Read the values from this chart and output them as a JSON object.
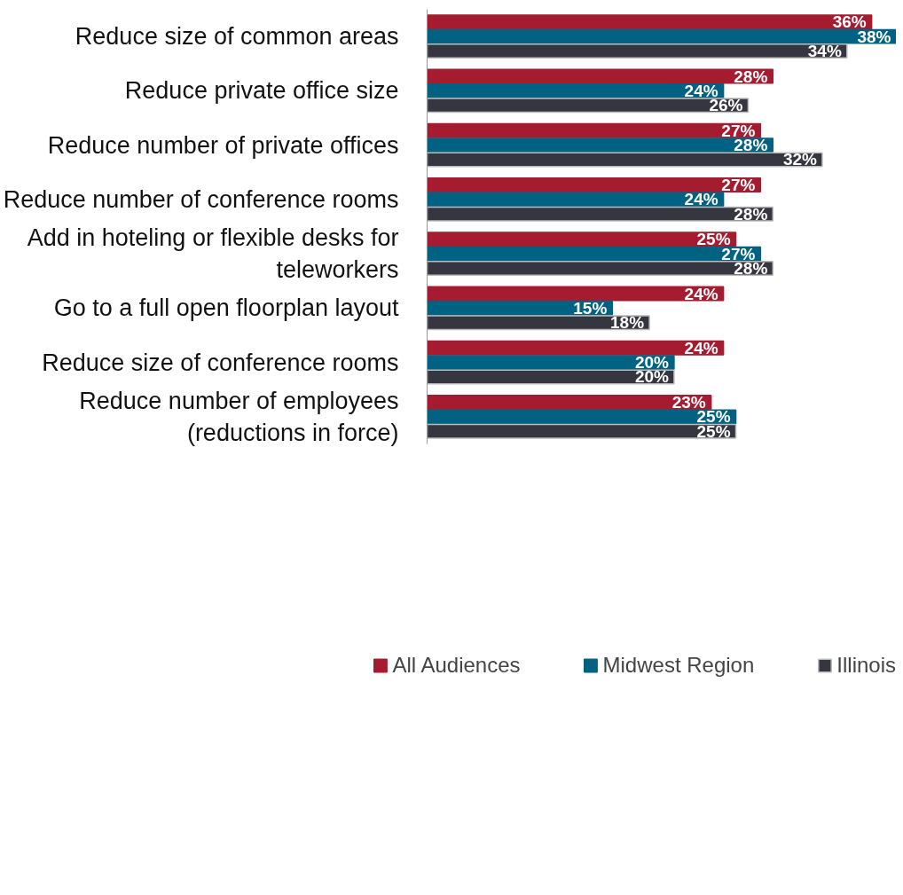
{
  "chart_data": {
    "type": "bar",
    "orientation": "horizontal",
    "legend": "bottom",
    "grid": false,
    "categories": [
      "Reduce size of common areas",
      "Reduce private office size",
      "Reduce number of private offices",
      "Reduce number of conference rooms",
      "Add in hoteling or flexible desks for teleworkers",
      "Go to a full open floorplan layout",
      "Reduce size of conference rooms",
      "Reduce number of employees (reductions in force)"
    ],
    "series": [
      {
        "name": "All Audiences",
        "color": "#a51c30",
        "values": [
          36,
          28,
          27,
          27,
          25,
          24,
          24,
          23
        ],
        "value_labels": [
          "36%",
          "28%",
          "27%",
          "27%",
          "25%",
          "24%",
          "24%",
          "23%"
        ]
      },
      {
        "name": "Midwest Region",
        "color": "#006283",
        "values": [
          38,
          24,
          28,
          24,
          27,
          15,
          20,
          25
        ],
        "value_labels": [
          "38%",
          "24%",
          "28%",
          "24%",
          "27%",
          "15%",
          "20%",
          "25%"
        ]
      },
      {
        "name": "Illinois",
        "color": "#363640",
        "values": [
          34,
          26,
          32,
          28,
          28,
          18,
          20,
          25
        ],
        "value_labels": [
          "34%",
          "26%",
          "32%",
          "28%",
          "28%",
          "18%",
          "20%",
          "25%"
        ]
      }
    ]
  }
}
